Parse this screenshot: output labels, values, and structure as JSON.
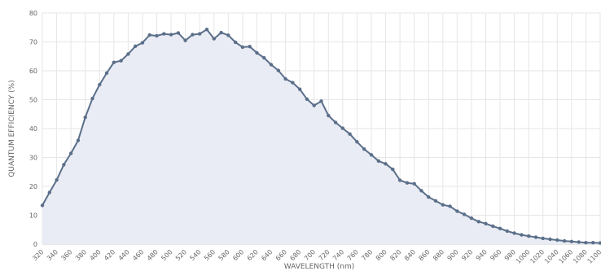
{
  "chart_data": {
    "type": "area",
    "title": "",
    "xlabel": "WAVELENGTH (nm)",
    "ylabel": "QUANTUM EFFICIENCY (%)",
    "xlim": [
      320,
      1100
    ],
    "ylim": [
      0,
      80
    ],
    "grid": true,
    "legend": "none",
    "colors": {
      "line": "#5b6f8a",
      "fill": "#e9ecf4",
      "grid": "#e6e6e6",
      "text": "#666666"
    },
    "x_ticks": [
      "320",
      "340",
      "360",
      "380",
      "400",
      "420",
      "440",
      "460",
      "480",
      "500",
      "520",
      "540",
      "560",
      "580",
      "600",
      "620",
      "640",
      "660",
      "680",
      "700",
      "720",
      "740",
      "760",
      "780",
      "800",
      "820",
      "840",
      "860",
      "880",
      "900",
      "920",
      "940",
      "960",
      "980",
      "1000",
      "1020",
      "1040",
      "1060",
      "1080",
      "1100"
    ],
    "y_ticks": [
      "0",
      "10",
      "20",
      "30",
      "40",
      "50",
      "60",
      "70",
      "80"
    ],
    "series": [
      {
        "x": [
          320,
          330,
          340,
          350,
          360,
          370,
          380,
          390,
          400,
          410,
          420,
          430,
          440,
          450,
          460,
          470,
          480,
          490,
          500,
          510,
          520,
          530,
          540,
          550,
          560,
          570,
          580,
          590,
          600,
          610,
          620,
          630,
          640,
          650,
          660,
          670,
          680,
          690,
          700,
          710,
          720,
          730,
          740,
          750,
          760,
          770,
          780,
          790,
          800,
          810,
          820,
          830,
          840,
          850,
          860,
          870,
          880,
          890,
          900,
          910,
          920,
          930,
          940,
          950,
          960,
          970,
          980,
          990,
          1000,
          1010,
          1020,
          1030,
          1040,
          1050,
          1060,
          1070,
          1080,
          1090,
          1100
        ],
        "y": [
          13.4,
          17.9,
          22.2,
          27.5,
          31.4,
          35.9,
          43.9,
          50.4,
          55.2,
          59.2,
          62.9,
          63.5,
          65.8,
          68.5,
          69.7,
          72.4,
          72.1,
          72.8,
          72.5,
          73.1,
          70.5,
          72.5,
          72.8,
          74.3,
          71.1,
          73.2,
          72.3,
          69.9,
          68.2,
          68.4,
          66.2,
          64.5,
          62.1,
          60.1,
          57.2,
          55.9,
          53.6,
          50.2,
          48.0,
          49.5,
          44.5,
          42.1,
          40.1,
          38.1,
          35.4,
          32.9,
          30.9,
          28.8,
          27.8,
          25.9,
          22.1,
          21.2,
          20.9,
          18.5,
          16.3,
          15.0,
          13.6,
          13.1,
          11.4,
          10.3,
          9.0,
          7.8,
          7.1,
          6.2,
          5.4,
          4.5,
          3.8,
          3.2,
          2.8,
          2.4,
          2.0,
          1.7,
          1.4,
          1.1,
          0.9,
          0.7,
          0.5,
          0.5,
          0.4
        ]
      }
    ]
  }
}
